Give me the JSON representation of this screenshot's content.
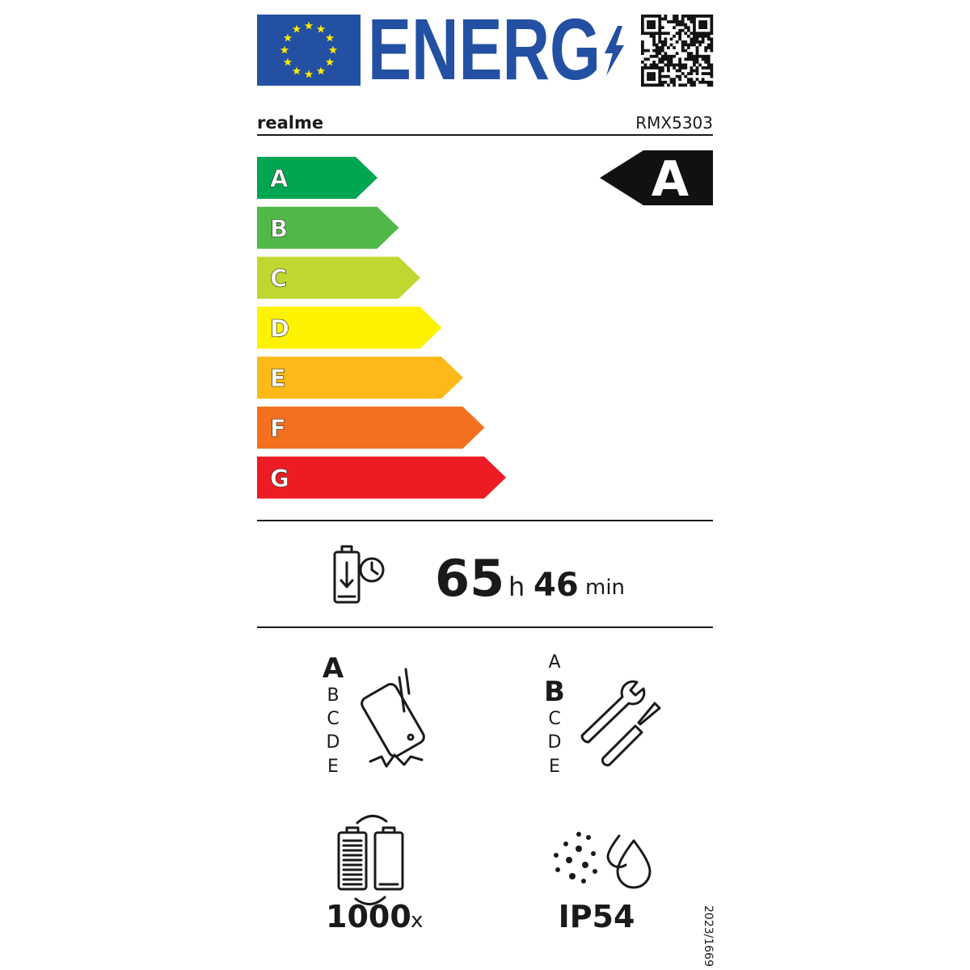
{
  "header": {
    "logo_text": "ENERG"
  },
  "supplier": "realme",
  "model": "RMX5303",
  "energy_classes": [
    {
      "label": "A",
      "color": "#00a651"
    },
    {
      "label": "B",
      "color": "#50b848"
    },
    {
      "label": "C",
      "color": "#bfd730"
    },
    {
      "label": "D",
      "color": "#fff200"
    },
    {
      "label": "E",
      "color": "#fcb918"
    },
    {
      "label": "F",
      "color": "#f37021"
    },
    {
      "label": "G",
      "color": "#ed1c24"
    }
  ],
  "rating": "A",
  "battery_endurance": {
    "hours": 65,
    "hours_unit": "h",
    "minutes": 46,
    "minutes_unit": "min"
  },
  "drop_resistance": {
    "scale": [
      "A",
      "B",
      "C",
      "D",
      "E"
    ],
    "rating": "A"
  },
  "repairability": {
    "scale": [
      "A",
      "B",
      "C",
      "D",
      "E"
    ],
    "rating": "B"
  },
  "battery_cycles": {
    "value": 1000,
    "unit": "x"
  },
  "ip_rating": "IP54",
  "regulation": "2023/1669"
}
